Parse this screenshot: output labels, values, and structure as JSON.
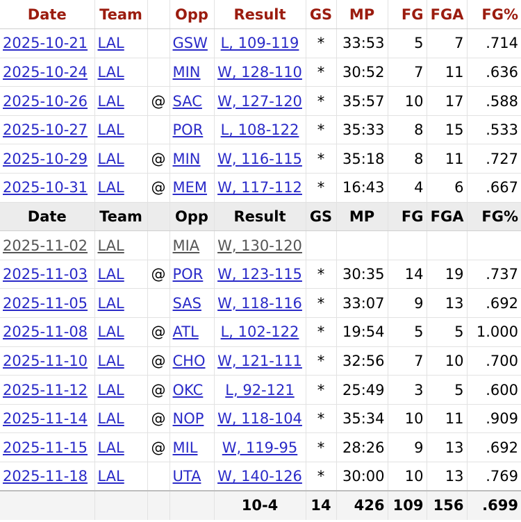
{
  "headers": {
    "date": "Date",
    "team": "Team",
    "opp": "Opp",
    "result": "Result",
    "gs": "GS",
    "mp": "MP",
    "fg": "FG",
    "fga": "FGA",
    "fgp": "FG%"
  },
  "rows_top": [
    {
      "date": "2025-10-21",
      "team": "LAL",
      "at": "",
      "opp": "GSW",
      "result": "L, 109-119",
      "gs": "*",
      "mp": "33:53",
      "fg": "5",
      "fga": "7",
      "fgp": ".714"
    },
    {
      "date": "2025-10-24",
      "team": "LAL",
      "at": "",
      "opp": "MIN",
      "result": "W, 128-110",
      "gs": "*",
      "mp": "30:52",
      "fg": "7",
      "fga": "11",
      "fgp": ".636"
    },
    {
      "date": "2025-10-26",
      "team": "LAL",
      "at": "@",
      "opp": "SAC",
      "result": "W, 127-120",
      "gs": "*",
      "mp": "35:57",
      "fg": "10",
      "fga": "17",
      "fgp": ".588"
    },
    {
      "date": "2025-10-27",
      "team": "LAL",
      "at": "",
      "opp": "POR",
      "result": "L, 108-122",
      "gs": "*",
      "mp": "35:33",
      "fg": "8",
      "fga": "15",
      "fgp": ".533"
    },
    {
      "date": "2025-10-29",
      "team": "LAL",
      "at": "@",
      "opp": "MIN",
      "result": "W, 116-115",
      "gs": "*",
      "mp": "35:18",
      "fg": "8",
      "fga": "11",
      "fgp": ".727"
    },
    {
      "date": "2025-10-31",
      "team": "LAL",
      "at": "@",
      "opp": "MEM",
      "result": "W, 117-112",
      "gs": "*",
      "mp": "16:43",
      "fg": "4",
      "fga": "6",
      "fgp": ".667"
    }
  ],
  "rows_bottom": [
    {
      "date": "2025-11-02",
      "team": "LAL",
      "at": "",
      "opp": "MIA",
      "result": "W, 130-120",
      "gs": "",
      "mp": "",
      "fg": "",
      "fga": "",
      "fgp": "",
      "inactive": true
    },
    {
      "date": "2025-11-03",
      "team": "LAL",
      "at": "@",
      "opp": "POR",
      "result": "W, 123-115",
      "gs": "*",
      "mp": "30:35",
      "fg": "14",
      "fga": "19",
      "fgp": ".737"
    },
    {
      "date": "2025-11-05",
      "team": "LAL",
      "at": "",
      "opp": "SAS",
      "result": "W, 118-116",
      "gs": "*",
      "mp": "33:07",
      "fg": "9",
      "fga": "13",
      "fgp": ".692"
    },
    {
      "date": "2025-11-08",
      "team": "LAL",
      "at": "@",
      "opp": "ATL",
      "result": "L, 102-122",
      "gs": "*",
      "mp": "19:54",
      "fg": "5",
      "fga": "5",
      "fgp": "1.000"
    },
    {
      "date": "2025-11-10",
      "team": "LAL",
      "at": "@",
      "opp": "CHO",
      "result": "W, 121-111",
      "gs": "*",
      "mp": "32:56",
      "fg": "7",
      "fga": "10",
      "fgp": ".700"
    },
    {
      "date": "2025-11-12",
      "team": "LAL",
      "at": "@",
      "opp": "OKC",
      "result": "L, 92-121",
      "gs": "*",
      "mp": "25:49",
      "fg": "3",
      "fga": "5",
      "fgp": ".600"
    },
    {
      "date": "2025-11-14",
      "team": "LAL",
      "at": "@",
      "opp": "NOP",
      "result": "W, 118-104",
      "gs": "*",
      "mp": "35:34",
      "fg": "10",
      "fga": "11",
      "fgp": ".909"
    },
    {
      "date": "2025-11-15",
      "team": "LAL",
      "at": "@",
      "opp": "MIL",
      "result": "W, 119-95",
      "gs": "*",
      "mp": "28:26",
      "fg": "9",
      "fga": "13",
      "fgp": ".692"
    },
    {
      "date": "2025-11-18",
      "team": "LAL",
      "at": "",
      "opp": "UTA",
      "result": "W, 140-126",
      "gs": "*",
      "mp": "30:00",
      "fg": "10",
      "fga": "13",
      "fgp": ".769"
    }
  ],
  "totals": {
    "result": "10-4",
    "gs": "14",
    "mp": "426",
    "fg": "109",
    "fga": "156",
    "fgp": ".699"
  }
}
